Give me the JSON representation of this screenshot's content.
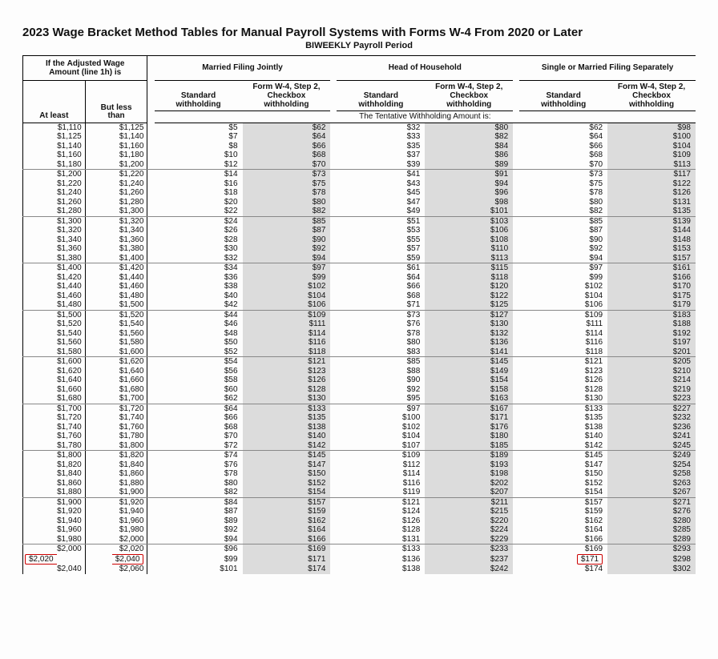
{
  "title": "2023 Wage Bracket Method Tables for Manual Payroll Systems with Forms W-4 From 2020 or Later",
  "subtitle": "BIWEEKLY Payroll Period",
  "colors": {
    "shade_bg": "#dcdcdc",
    "highlight_border": "#c00",
    "text": "#111",
    "rule": "#000",
    "sep_rule": "#888",
    "page_bg": "#fdfdfd"
  },
  "headers": {
    "wage_block_line1": "If the <b>Adjusted Wage</b>",
    "wage_block_line2": "<b>Amount</b> (line 1h) is",
    "at_least": "At least",
    "but_less_than": "But less<br>than",
    "filing_statuses": [
      "Married Filing Jointly",
      "Head of Household",
      "Single or Married Filing Separately"
    ],
    "std": "Standard<br>withholding",
    "step2": "Form W-4, Step 2,<br>Checkbox<br>withholding",
    "tentative": "The Tentative Withholding Amount is:"
  },
  "groups": [
    {
      "rows": [
        {
          "at": "$1,110",
          "bl": "$1,125",
          "v": [
            "$5",
            "$62",
            "$32",
            "$80",
            "$62",
            "$98"
          ]
        },
        {
          "at": "$1,125",
          "bl": "$1,140",
          "v": [
            "$7",
            "$64",
            "$33",
            "$82",
            "$64",
            "$100"
          ]
        },
        {
          "at": "$1,140",
          "bl": "$1,160",
          "v": [
            "$8",
            "$66",
            "$35",
            "$84",
            "$66",
            "$104"
          ]
        },
        {
          "at": "$1,160",
          "bl": "$1,180",
          "v": [
            "$10",
            "$68",
            "$37",
            "$86",
            "$68",
            "$109"
          ]
        },
        {
          "at": "$1,180",
          "bl": "$1,200",
          "v": [
            "$12",
            "$70",
            "$39",
            "$89",
            "$70",
            "$113"
          ]
        }
      ]
    },
    {
      "rows": [
        {
          "at": "$1,200",
          "bl": "$1,220",
          "v": [
            "$14",
            "$73",
            "$41",
            "$91",
            "$73",
            "$117"
          ]
        },
        {
          "at": "$1,220",
          "bl": "$1,240",
          "v": [
            "$16",
            "$75",
            "$43",
            "$94",
            "$75",
            "$122"
          ]
        },
        {
          "at": "$1,240",
          "bl": "$1,260",
          "v": [
            "$18",
            "$78",
            "$45",
            "$96",
            "$78",
            "$126"
          ]
        },
        {
          "at": "$1,260",
          "bl": "$1,280",
          "v": [
            "$20",
            "$80",
            "$47",
            "$98",
            "$80",
            "$131"
          ]
        },
        {
          "at": "$1,280",
          "bl": "$1,300",
          "v": [
            "$22",
            "$82",
            "$49",
            "$101",
            "$82",
            "$135"
          ]
        }
      ]
    },
    {
      "rows": [
        {
          "at": "$1,300",
          "bl": "$1,320",
          "v": [
            "$24",
            "$85",
            "$51",
            "$103",
            "$85",
            "$139"
          ]
        },
        {
          "at": "$1,320",
          "bl": "$1,340",
          "v": [
            "$26",
            "$87",
            "$53",
            "$106",
            "$87",
            "$144"
          ]
        },
        {
          "at": "$1,340",
          "bl": "$1,360",
          "v": [
            "$28",
            "$90",
            "$55",
            "$108",
            "$90",
            "$148"
          ]
        },
        {
          "at": "$1,360",
          "bl": "$1,380",
          "v": [
            "$30",
            "$92",
            "$57",
            "$110",
            "$92",
            "$153"
          ]
        },
        {
          "at": "$1,380",
          "bl": "$1,400",
          "v": [
            "$32",
            "$94",
            "$59",
            "$113",
            "$94",
            "$157"
          ]
        }
      ]
    },
    {
      "rows": [
        {
          "at": "$1,400",
          "bl": "$1,420",
          "v": [
            "$34",
            "$97",
            "$61",
            "$115",
            "$97",
            "$161"
          ]
        },
        {
          "at": "$1,420",
          "bl": "$1,440",
          "v": [
            "$36",
            "$99",
            "$64",
            "$118",
            "$99",
            "$166"
          ]
        },
        {
          "at": "$1,440",
          "bl": "$1,460",
          "v": [
            "$38",
            "$102",
            "$66",
            "$120",
            "$102",
            "$170"
          ]
        },
        {
          "at": "$1,460",
          "bl": "$1,480",
          "v": [
            "$40",
            "$104",
            "$68",
            "$122",
            "$104",
            "$175"
          ]
        },
        {
          "at": "$1,480",
          "bl": "$1,500",
          "v": [
            "$42",
            "$106",
            "$71",
            "$125",
            "$106",
            "$179"
          ]
        }
      ]
    },
    {
      "rows": [
        {
          "at": "$1,500",
          "bl": "$1,520",
          "v": [
            "$44",
            "$109",
            "$73",
            "$127",
            "$109",
            "$183"
          ]
        },
        {
          "at": "$1,520",
          "bl": "$1,540",
          "v": [
            "$46",
            "$111",
            "$76",
            "$130",
            "$111",
            "$188"
          ]
        },
        {
          "at": "$1,540",
          "bl": "$1,560",
          "v": [
            "$48",
            "$114",
            "$78",
            "$132",
            "$114",
            "$192"
          ]
        },
        {
          "at": "$1,560",
          "bl": "$1,580",
          "v": [
            "$50",
            "$116",
            "$80",
            "$136",
            "$116",
            "$197"
          ]
        },
        {
          "at": "$1,580",
          "bl": "$1,600",
          "v": [
            "$52",
            "$118",
            "$83",
            "$141",
            "$118",
            "$201"
          ]
        }
      ]
    },
    {
      "rows": [
        {
          "at": "$1,600",
          "bl": "$1,620",
          "v": [
            "$54",
            "$121",
            "$85",
            "$145",
            "$121",
            "$205"
          ]
        },
        {
          "at": "$1,620",
          "bl": "$1,640",
          "v": [
            "$56",
            "$123",
            "$88",
            "$149",
            "$123",
            "$210"
          ]
        },
        {
          "at": "$1,640",
          "bl": "$1,660",
          "v": [
            "$58",
            "$126",
            "$90",
            "$154",
            "$126",
            "$214"
          ]
        },
        {
          "at": "$1,660",
          "bl": "$1,680",
          "v": [
            "$60",
            "$128",
            "$92",
            "$158",
            "$128",
            "$219"
          ]
        },
        {
          "at": "$1,680",
          "bl": "$1,700",
          "v": [
            "$62",
            "$130",
            "$95",
            "$163",
            "$130",
            "$223"
          ]
        }
      ]
    },
    {
      "rows": [
        {
          "at": "$1,700",
          "bl": "$1,720",
          "v": [
            "$64",
            "$133",
            "$97",
            "$167",
            "$133",
            "$227"
          ]
        },
        {
          "at": "$1,720",
          "bl": "$1,740",
          "v": [
            "$66",
            "$135",
            "$100",
            "$171",
            "$135",
            "$232"
          ]
        },
        {
          "at": "$1,740",
          "bl": "$1,760",
          "v": [
            "$68",
            "$138",
            "$102",
            "$176",
            "$138",
            "$236"
          ]
        },
        {
          "at": "$1,760",
          "bl": "$1,780",
          "v": [
            "$70",
            "$140",
            "$104",
            "$180",
            "$140",
            "$241"
          ]
        },
        {
          "at": "$1,780",
          "bl": "$1,800",
          "v": [
            "$72",
            "$142",
            "$107",
            "$185",
            "$142",
            "$245"
          ]
        }
      ]
    },
    {
      "rows": [
        {
          "at": "$1,800",
          "bl": "$1,820",
          "v": [
            "$74",
            "$145",
            "$109",
            "$189",
            "$145",
            "$249"
          ]
        },
        {
          "at": "$1,820",
          "bl": "$1,840",
          "v": [
            "$76",
            "$147",
            "$112",
            "$193",
            "$147",
            "$254"
          ]
        },
        {
          "at": "$1,840",
          "bl": "$1,860",
          "v": [
            "$78",
            "$150",
            "$114",
            "$198",
            "$150",
            "$258"
          ]
        },
        {
          "at": "$1,860",
          "bl": "$1,880",
          "v": [
            "$80",
            "$152",
            "$116",
            "$202",
            "$152",
            "$263"
          ]
        },
        {
          "at": "$1,880",
          "bl": "$1,900",
          "v": [
            "$82",
            "$154",
            "$119",
            "$207",
            "$154",
            "$267"
          ]
        }
      ]
    },
    {
      "rows": [
        {
          "at": "$1,900",
          "bl": "$1,920",
          "v": [
            "$84",
            "$157",
            "$121",
            "$211",
            "$157",
            "$271"
          ]
        },
        {
          "at": "$1,920",
          "bl": "$1,940",
          "v": [
            "$87",
            "$159",
            "$124",
            "$215",
            "$159",
            "$276"
          ]
        },
        {
          "at": "$1,940",
          "bl": "$1,960",
          "v": [
            "$89",
            "$162",
            "$126",
            "$220",
            "$162",
            "$280"
          ]
        },
        {
          "at": "$1,960",
          "bl": "$1,980",
          "v": [
            "$92",
            "$164",
            "$128",
            "$224",
            "$164",
            "$285"
          ]
        },
        {
          "at": "$1,980",
          "bl": "$2,000",
          "v": [
            "$94",
            "$166",
            "$131",
            "$229",
            "$166",
            "$289"
          ]
        }
      ]
    },
    {
      "rows": [
        {
          "at": "$2,000",
          "bl": "$2,020",
          "v": [
            "$96",
            "$169",
            "$133",
            "$233",
            "$169",
            "$293"
          ]
        },
        {
          "at": "$2,020",
          "bl": "$2,040",
          "v": [
            "$99",
            "$171",
            "$136",
            "$237",
            "$171",
            "$298"
          ],
          "highlight": {
            "wage": true,
            "col": 4
          }
        },
        {
          "at": "$2,040",
          "bl": "$2,060",
          "v": [
            "$101",
            "$174",
            "$138",
            "$242",
            "$174",
            "$302"
          ]
        }
      ]
    }
  ]
}
